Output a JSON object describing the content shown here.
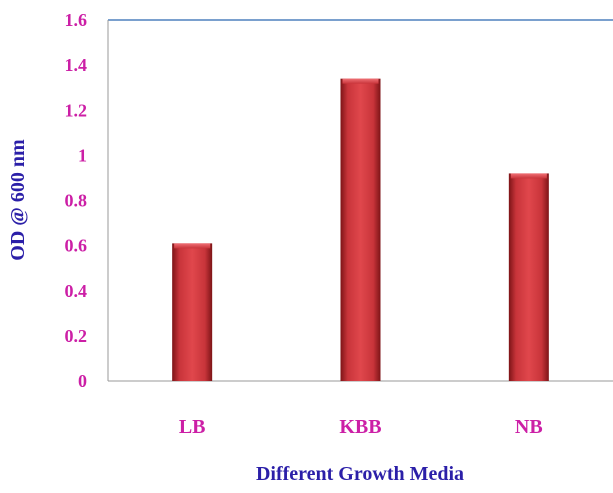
{
  "chart_data": {
    "type": "bar",
    "categories": [
      "LB",
      "KBB",
      "NB"
    ],
    "values": [
      0.61,
      1.34,
      0.92
    ],
    "xlabel": "Different Growth Media",
    "ylabel": "OD @ 600 nm",
    "ylim": [
      0,
      1.6
    ],
    "yticks": [
      "0",
      "0.2",
      "0.4",
      "0.6",
      "0.8",
      "1",
      "1.2",
      "1.4",
      "1.6"
    ],
    "grid": false,
    "colors": {
      "bar": "#c8343a",
      "bar_dark": "#7d1417",
      "tick_label": "#cc1fa6",
      "axis_title": "#2b1fa8",
      "top_line": "#4f81bd",
      "axis": "#999999"
    }
  }
}
